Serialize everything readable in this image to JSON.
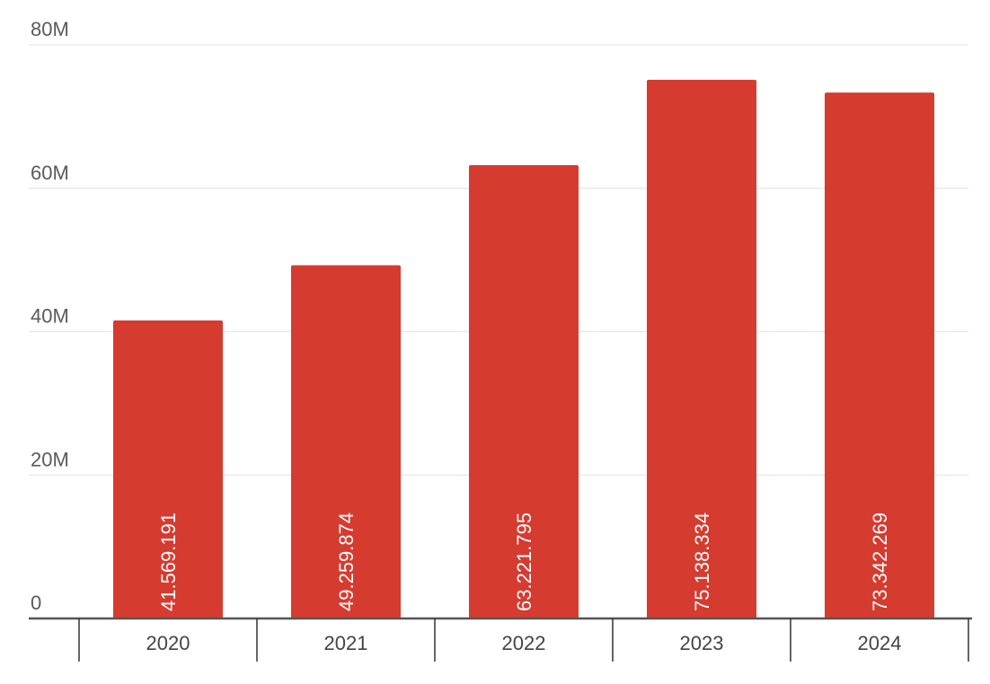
{
  "chart_data": {
    "type": "bar",
    "categories": [
      "2020",
      "2021",
      "2022",
      "2023",
      "2024"
    ],
    "values": [
      41569191,
      49259874,
      63221795,
      75138334,
      73342269
    ],
    "data_labels": [
      "41.569.191",
      "49.259.874",
      "63.221.795",
      "75.138.334",
      "73.342.269"
    ],
    "title": "",
    "xlabel": "",
    "ylabel": "",
    "ylim": [
      0,
      80000000
    ],
    "yticks": [
      0,
      20000000,
      40000000,
      60000000,
      80000000
    ],
    "ytick_labels": [
      "0",
      "20M",
      "40M",
      "60M",
      "80M"
    ],
    "grid": true,
    "legend": "none",
    "bar_color": "#d63b2f"
  }
}
